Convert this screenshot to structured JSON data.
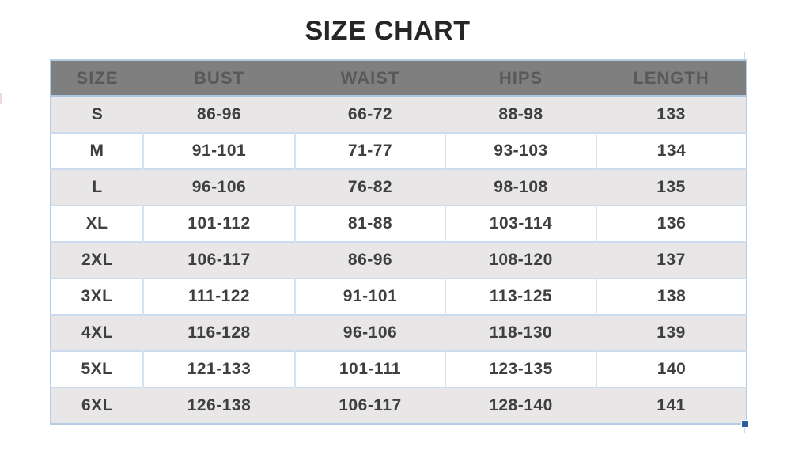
{
  "page": {
    "title": "SIZE CHART"
  },
  "table": {
    "columns": [
      "SIZE",
      "BUST",
      "WAIST",
      "HIPS",
      "LENGTH"
    ],
    "rows": [
      [
        "S",
        "86-96",
        "66-72",
        "88-98",
        "133"
      ],
      [
        "M",
        "91-101",
        "71-77",
        "93-103",
        "134"
      ],
      [
        "L",
        "96-106",
        "76-82",
        "98-108",
        "135"
      ],
      [
        "XL",
        "101-112",
        "81-88",
        "103-114",
        "136"
      ],
      [
        "2XL",
        "106-117",
        "86-96",
        "108-120",
        "137"
      ],
      [
        "3XL",
        "111-122",
        "91-101",
        "113-125",
        "138"
      ],
      [
        "4XL",
        "116-128",
        "96-106",
        "118-130",
        "139"
      ],
      [
        "5XL",
        "121-133",
        "101-111",
        "123-135",
        "140"
      ],
      [
        "6XL",
        "126-138",
        "106-117",
        "128-140",
        "141"
      ]
    ]
  },
  "chart_data": {
    "type": "table",
    "title": "SIZE CHART",
    "columns": [
      "SIZE",
      "BUST",
      "WAIST",
      "HIPS",
      "LENGTH"
    ],
    "rows": [
      [
        "S",
        "86-96",
        "66-72",
        "88-98",
        "133"
      ],
      [
        "M",
        "91-101",
        "71-77",
        "93-103",
        "134"
      ],
      [
        "L",
        "96-106",
        "76-82",
        "98-108",
        "135"
      ],
      [
        "XL",
        "101-112",
        "81-88",
        "103-114",
        "136"
      ],
      [
        "2XL",
        "106-117",
        "86-96",
        "108-120",
        "137"
      ],
      [
        "3XL",
        "111-122",
        "91-101",
        "113-125",
        "138"
      ],
      [
        "4XL",
        "116-128",
        "96-106",
        "118-130",
        "139"
      ],
      [
        "5XL",
        "121-133",
        "101-111",
        "123-135",
        "140"
      ],
      [
        "6XL",
        "126-138",
        "106-117",
        "128-140",
        "141"
      ]
    ],
    "layout_hints": {
      "stripe_rows": true,
      "first_stripe_row_index": 0,
      "header_position": "top"
    }
  },
  "colors": {
    "header_bg": "#7f7f7f",
    "header_text": "#595959",
    "stripe_row_bg": "#e8e6e6",
    "cell_text": "#3f3f3f",
    "grid_border": "#ccdcee",
    "outer_border": "#b3cce6",
    "selection_handle": "#2e5aa3",
    "title_text": "#262626"
  }
}
